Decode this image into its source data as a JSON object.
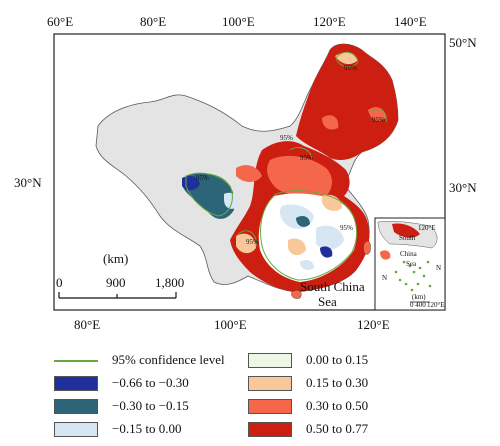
{
  "map": {
    "top_lon_labels": [
      "60°E",
      "80°E",
      "100°E",
      "120°E",
      "140°E"
    ],
    "bottom_lon_labels": [
      "80°E",
      "100°E",
      "120°E"
    ],
    "left_lat_label": "30°N",
    "right_lat_labels": [
      "50°N",
      "30°N"
    ],
    "scale": {
      "unit": "(km)",
      "ticks": [
        "0",
        "900",
        "1,800"
      ]
    },
    "sea_label_line1": "South China",
    "sea_label_line2": "Sea",
    "inset": {
      "top_label": "120°E",
      "label_south": "South",
      "label_china": "China",
      "label_sea": "Sea",
      "n_label_left": "N",
      "n_label_right": "N",
      "scale_text": "0  400",
      "unit": "(km)",
      "bottom_label": "120°E"
    },
    "contour_labels": [
      "95%",
      "95%",
      "95%",
      "95%",
      "95%",
      "95%",
      "95%"
    ]
  },
  "legend": {
    "left": [
      {
        "label": "95% confidence level",
        "type": "line",
        "color": "#6aa83a"
      },
      {
        "label": "−0.66 to −0.30",
        "type": "box",
        "color": "#1f2f9e"
      },
      {
        "label": "−0.30 to −0.15",
        "type": "box",
        "color": "#2b6577"
      },
      {
        "label": "−0.15 to 0.00",
        "type": "box",
        "color": "#d6e6f2"
      }
    ],
    "right": [
      {
        "label": "0.00 to 0.15",
        "type": "box",
        "color": "#eef6e6"
      },
      {
        "label": "0.15 to 0.30",
        "type": "box",
        "color": "#f8c89a"
      },
      {
        "label": "0.30 to 0.50",
        "type": "box",
        "color": "#f4674a"
      },
      {
        "label": "0.50 to 0.77",
        "type": "box",
        "color": "#cc1f12"
      }
    ]
  }
}
